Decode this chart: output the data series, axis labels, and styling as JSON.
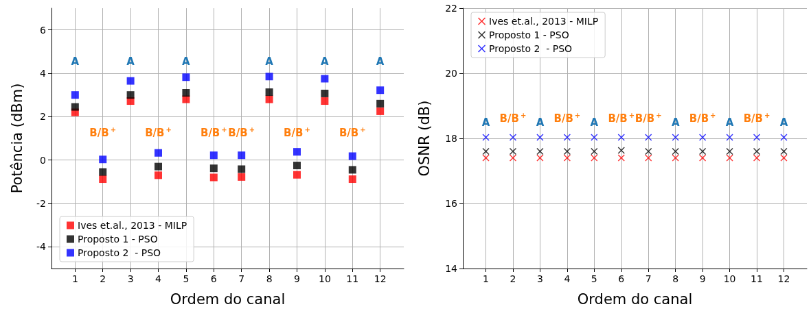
{
  "chart_data": [
    {
      "type": "scatter",
      "xlabel": "Ordem do canal",
      "ylabel": "Potência (dBm)",
      "x": [
        1,
        2,
        3,
        4,
        5,
        6,
        7,
        8,
        9,
        10,
        11,
        12
      ],
      "xlim": [
        0.15,
        12.85
      ],
      "xticks": [
        1,
        2,
        3,
        4,
        5,
        6,
        7,
        8,
        9,
        10,
        11,
        12
      ],
      "ylim": [
        -5,
        7
      ],
      "yticks": [
        -4,
        -2,
        0,
        2,
        4,
        6
      ],
      "grid": true,
      "legend": "bottom left",
      "marker": "square",
      "series": [
        {
          "name": "Ives et.al., 2013 - MILP",
          "color": "#ff0000",
          "values": [
            2.2,
            -0.88,
            2.72,
            -0.7,
            2.8,
            -0.8,
            -0.78,
            2.8,
            -0.68,
            2.72,
            -0.88,
            2.25
          ]
        },
        {
          "name": "Proposto 1 - PSO",
          "color": "#000000",
          "values": [
            2.45,
            -0.55,
            3.0,
            -0.3,
            3.1,
            -0.38,
            -0.42,
            3.13,
            -0.25,
            3.07,
            -0.45,
            2.6
          ]
        },
        {
          "name": "Proposto 2  - PSO",
          "color": "#0000ff",
          "values": [
            3.0,
            0.03,
            3.65,
            0.33,
            3.82,
            0.22,
            0.22,
            3.85,
            0.38,
            3.75,
            0.18,
            3.22
          ]
        }
      ],
      "annotations": [
        "A",
        "B/B$^{+}$",
        "A",
        "B/B$^{+}$",
        "A",
        "B/B$^{+}$",
        "B/B$^{+}$",
        "A",
        "B/B$^{+}$",
        "A",
        "B/B$^{+}$",
        "A"
      ]
    },
    {
      "type": "scatter",
      "xlabel": "Ordem do canal",
      "ylabel": "OSNR (dB)",
      "x": [
        1,
        2,
        3,
        4,
        5,
        6,
        7,
        8,
        9,
        10,
        11,
        12
      ],
      "xlim": [
        0.15,
        12.85
      ],
      "xticks": [
        1,
        2,
        3,
        4,
        5,
        6,
        7,
        8,
        9,
        10,
        11,
        12
      ],
      "ylim": [
        14,
        22
      ],
      "yticks": [
        14,
        16,
        18,
        20,
        22
      ],
      "grid": true,
      "legend": "top left",
      "marker": "cross",
      "series": [
        {
          "name": "Ives et.al., 2013 - MILP",
          "color": "#ff0000",
          "values": [
            17.4,
            17.4,
            17.4,
            17.4,
            17.4,
            17.4,
            17.4,
            17.4,
            17.4,
            17.4,
            17.4,
            17.4
          ]
        },
        {
          "name": "Proposto 1 - PSO",
          "color": "#000000",
          "values": [
            17.6,
            17.6,
            17.6,
            17.6,
            17.6,
            17.63,
            17.6,
            17.6,
            17.6,
            17.6,
            17.6,
            17.6
          ]
        },
        {
          "name": "Proposto 2  - PSO",
          "color": "#0000ff",
          "values": [
            18.03,
            18.03,
            18.03,
            18.03,
            18.03,
            18.03,
            18.03,
            18.03,
            18.03,
            18.03,
            18.03,
            18.03
          ]
        }
      ],
      "annotations": [
        "A",
        "B/B$^{+}$",
        "A",
        "B/B$^{+}$",
        "A",
        "B/B$^{+}$",
        "B/B$^{+}$",
        "A",
        "B/B$^{+}$",
        "A",
        "B/B$^{+}$",
        "A"
      ]
    }
  ]
}
